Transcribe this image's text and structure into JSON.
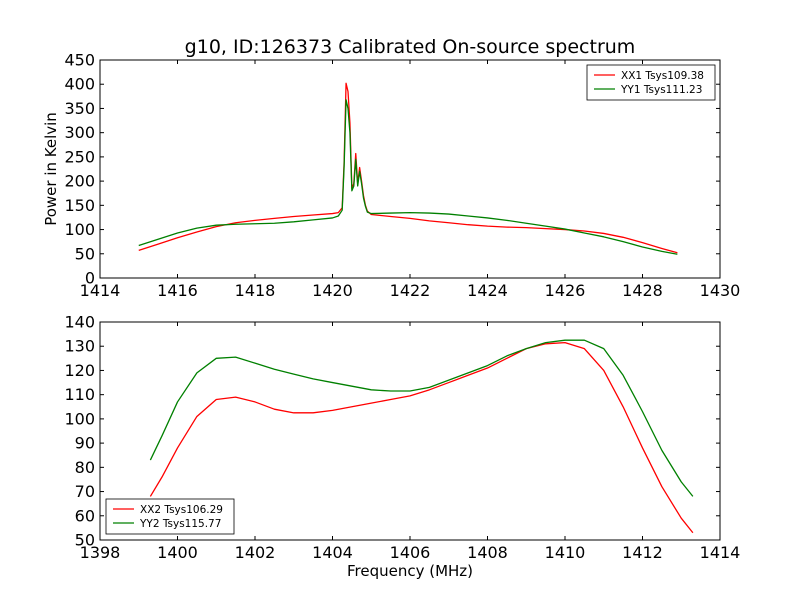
{
  "chart_data": [
    {
      "type": "line",
      "title": "g10, ID:126373 Calibrated On-source spectrum",
      "xlabel": "",
      "ylabel": "Power in Kelvin",
      "xlim": [
        1414,
        1430
      ],
      "ylim": [
        0,
        450
      ],
      "xticks": [
        "1414",
        "1416",
        "1418",
        "1420",
        "1422",
        "1424",
        "1426",
        "1428",
        "1430"
      ],
      "yticks": [
        "0",
        "50",
        "100",
        "150",
        "200",
        "250",
        "300",
        "350",
        "400",
        "450"
      ],
      "legend_position": "top-right",
      "grid": false,
      "series": [
        {
          "name": "XX1 Tsys109.38",
          "color": "#ff0000",
          "x": [
            1415.0,
            1415.5,
            1416.0,
            1416.5,
            1417.0,
            1417.5,
            1418.0,
            1418.5,
            1419.0,
            1419.5,
            1420.0,
            1420.15,
            1420.25,
            1420.3,
            1420.35,
            1420.4,
            1420.45,
            1420.5,
            1420.55,
            1420.6,
            1420.65,
            1420.7,
            1420.75,
            1420.8,
            1420.85,
            1420.9,
            1421.0,
            1421.5,
            1422.0,
            1422.5,
            1423.0,
            1423.5,
            1424.0,
            1424.5,
            1425.0,
            1425.5,
            1426.0,
            1426.5,
            1427.0,
            1427.5,
            1428.0,
            1428.5,
            1428.9
          ],
          "y": [
            57,
            70,
            83,
            95,
            106,
            114,
            119,
            123,
            127,
            130,
            133,
            135,
            145,
            240,
            402,
            385,
            320,
            185,
            195,
            257,
            195,
            228,
            200,
            170,
            150,
            138,
            131,
            127,
            123,
            118,
            114,
            110,
            107,
            105,
            104,
            102,
            100,
            97,
            92,
            84,
            73,
            61,
            52
          ]
        },
        {
          "name": "YY1 Tsys111.23",
          "color": "#008000",
          "x": [
            1415.0,
            1415.5,
            1416.0,
            1416.5,
            1417.0,
            1417.5,
            1418.0,
            1418.5,
            1419.0,
            1419.5,
            1420.0,
            1420.15,
            1420.25,
            1420.3,
            1420.35,
            1420.4,
            1420.45,
            1420.5,
            1420.55,
            1420.6,
            1420.65,
            1420.7,
            1420.75,
            1420.8,
            1420.85,
            1420.9,
            1421.0,
            1421.5,
            1422.0,
            1422.5,
            1423.0,
            1423.5,
            1424.0,
            1424.5,
            1425.0,
            1425.5,
            1426.0,
            1426.5,
            1427.0,
            1427.5,
            1428.0,
            1428.5,
            1428.9
          ],
          "y": [
            67,
            80,
            93,
            103,
            109,
            111,
            112,
            113,
            116,
            120,
            124,
            128,
            140,
            230,
            368,
            350,
            300,
            180,
            190,
            245,
            190,
            220,
            195,
            165,
            148,
            136,
            133,
            134,
            135,
            134,
            132,
            128,
            124,
            119,
            113,
            107,
            101,
            93,
            85,
            75,
            64,
            55,
            49
          ]
        }
      ]
    },
    {
      "type": "line",
      "title": "",
      "xlabel": "Frequency (MHz)",
      "ylabel": "",
      "xlim": [
        1398,
        1414
      ],
      "ylim": [
        50,
        140
      ],
      "xticks": [
        "1398",
        "1400",
        "1402",
        "1404",
        "1406",
        "1408",
        "1410",
        "1412",
        "1414"
      ],
      "yticks": [
        "50",
        "60",
        "70",
        "80",
        "90",
        "100",
        "110",
        "120",
        "130",
        "140"
      ],
      "legend_position": "bottom-left",
      "grid": false,
      "series": [
        {
          "name": "XX2 Tsys106.29",
          "color": "#ff0000",
          "x": [
            1399.3,
            1399.6,
            1400.0,
            1400.5,
            1401.0,
            1401.5,
            1402.0,
            1402.5,
            1403.0,
            1403.5,
            1404.0,
            1404.5,
            1405.0,
            1405.5,
            1406.0,
            1406.5,
            1407.0,
            1407.5,
            1408.0,
            1408.5,
            1409.0,
            1409.5,
            1410.0,
            1410.5,
            1411.0,
            1411.5,
            1412.0,
            1412.5,
            1413.0,
            1413.3
          ],
          "y": [
            68,
            76,
            88,
            101,
            108,
            109,
            107,
            104,
            102.5,
            102.5,
            103.5,
            105,
            106.5,
            108,
            109.5,
            112,
            115,
            118,
            121,
            125,
            129,
            131,
            131.5,
            129,
            120,
            105,
            88,
            72,
            59,
            53
          ]
        },
        {
          "name": "YY2 Tsys115.77",
          "color": "#008000",
          "x": [
            1399.3,
            1399.6,
            1400.0,
            1400.5,
            1401.0,
            1401.5,
            1402.0,
            1402.5,
            1403.0,
            1403.5,
            1404.0,
            1404.5,
            1405.0,
            1405.5,
            1406.0,
            1406.5,
            1407.0,
            1407.5,
            1408.0,
            1408.5,
            1409.0,
            1409.5,
            1410.0,
            1410.5,
            1411.0,
            1411.5,
            1412.0,
            1412.5,
            1413.0,
            1413.3
          ],
          "y": [
            83,
            93,
            107,
            119,
            125,
            125.5,
            123,
            120.5,
            118.5,
            116.5,
            115,
            113.5,
            112,
            111.5,
            111.5,
            113,
            116,
            119,
            122,
            126,
            129,
            131.5,
            132.5,
            132.5,
            129,
            118,
            103,
            87,
            74,
            68
          ]
        }
      ]
    }
  ]
}
